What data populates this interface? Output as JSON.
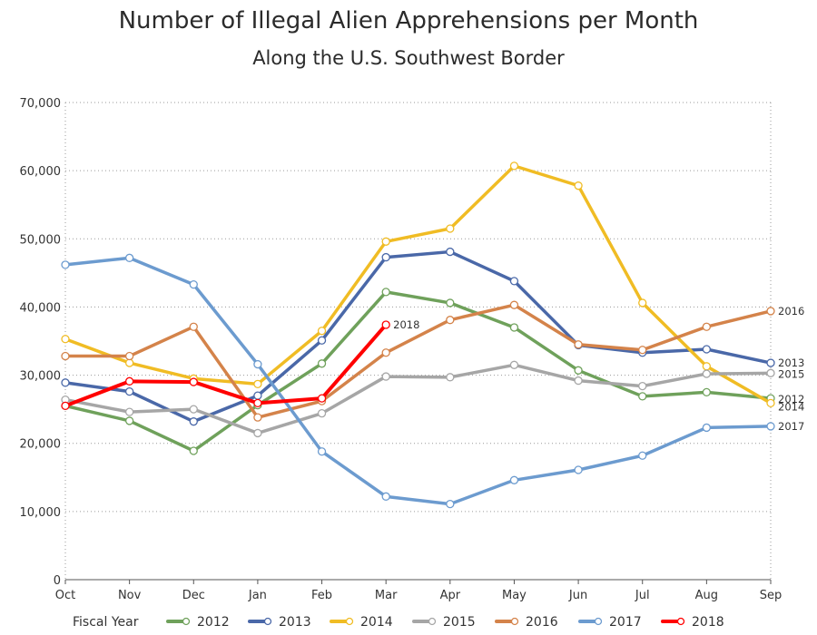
{
  "chart_data": {
    "type": "line",
    "title": "Number of Illegal Alien Apprehensions per Month",
    "subtitle": "Along the U.S. Southwest Border",
    "xlabel": "",
    "ylabel": "",
    "categories": [
      "Oct",
      "Nov",
      "Dec",
      "Jan",
      "Feb",
      "Mar",
      "Apr",
      "May",
      "Jun",
      "Jul",
      "Aug",
      "Sep"
    ],
    "ylim": [
      0,
      70000
    ],
    "yticks": [
      0,
      10000,
      20000,
      30000,
      40000,
      50000,
      60000,
      70000
    ],
    "ytick_labels": [
      "0",
      "10,000",
      "20,000",
      "30,000",
      "40,000",
      "50,000",
      "60,000",
      "70,000"
    ],
    "grid": "dotted",
    "legend_title": "Fiscal Year",
    "legend_position": "bottom",
    "series": [
      {
        "name": "2012",
        "color": "#6fa15b",
        "end_label": "2012",
        "values": [
          25500,
          23300,
          18900,
          25600,
          31700,
          42200,
          40600,
          37000,
          30700,
          26900,
          27500,
          26600
        ]
      },
      {
        "name": "2013",
        "color": "#4a68a8",
        "end_label": "2013",
        "values": [
          28900,
          27600,
          23200,
          27000,
          35100,
          47300,
          48100,
          43800,
          34400,
          33300,
          33800,
          31800
        ]
      },
      {
        "name": "2014",
        "color": "#f0bc24",
        "end_label": "2014",
        "values": [
          35300,
          31800,
          29500,
          28700,
          36500,
          49600,
          51500,
          60700,
          57800,
          40600,
          31300,
          25900
        ]
      },
      {
        "name": "2015",
        "color": "#a6a6a6",
        "end_label": "2015",
        "values": [
          26400,
          24600,
          25000,
          21500,
          24400,
          29800,
          29700,
          31500,
          29200,
          28400,
          30200,
          30300
        ]
      },
      {
        "name": "2016",
        "color": "#d4834a",
        "end_label": "2016",
        "values": [
          32800,
          32800,
          37100,
          23800,
          26200,
          33300,
          38100,
          40300,
          34500,
          33700,
          37100,
          39400
        ]
      },
      {
        "name": "2017",
        "color": "#6c9bcf",
        "end_label": "2017",
        "values": [
          46200,
          47200,
          43300,
          31600,
          18800,
          12200,
          11100,
          14600,
          16100,
          18200,
          22300,
          22500
        ]
      },
      {
        "name": "2018",
        "color": "#ff0000",
        "end_label": "2018",
        "values": [
          25500,
          29100,
          29000,
          25900,
          26600,
          37400,
          null,
          null,
          null,
          null,
          null,
          null
        ]
      }
    ]
  }
}
